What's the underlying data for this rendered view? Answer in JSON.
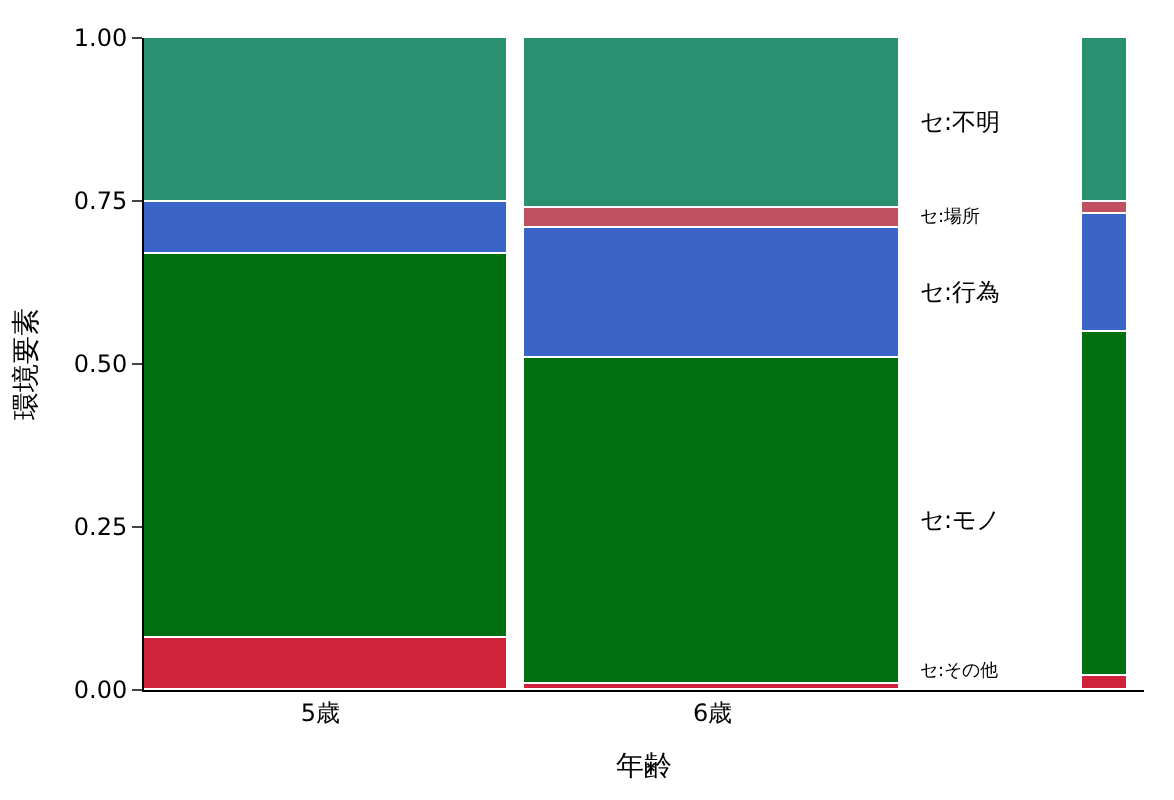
{
  "chart_data": {
    "type": "bar",
    "stacked": true,
    "xlabel": "年齢",
    "ylabel": "環境要素",
    "categories": [
      "5歳",
      "6歳",
      null
    ],
    "series": [
      {
        "name": "セ:その他",
        "color": "#d0223a",
        "values": [
          0.08,
          0.01,
          0.02
        ]
      },
      {
        "name": "セ:モノ",
        "color": "#006f10",
        "values": [
          0.59,
          0.5,
          0.53
        ]
      },
      {
        "name": "セ:行為",
        "color": "#3a64c8",
        "values": [
          0.08,
          0.2,
          0.18
        ]
      },
      {
        "name": "セ:場所",
        "color": "#c05060",
        "values": [
          0,
          0.03,
          0.02
        ]
      },
      {
        "name": "セ:不明",
        "color": "#2a9070",
        "values": [
          0.25,
          0.26,
          0.25
        ]
      }
    ],
    "ylim": [
      0,
      1
    ],
    "yticks": [
      {
        "value": 0,
        "label": "0.00"
      },
      {
        "value": 0.25,
        "label": "0.25"
      },
      {
        "value": 0.5,
        "label": "0.50"
      },
      {
        "value": 0.75,
        "label": "0.75"
      },
      {
        "value": 1,
        "label": "1.00"
      }
    ],
    "legend": false
  }
}
